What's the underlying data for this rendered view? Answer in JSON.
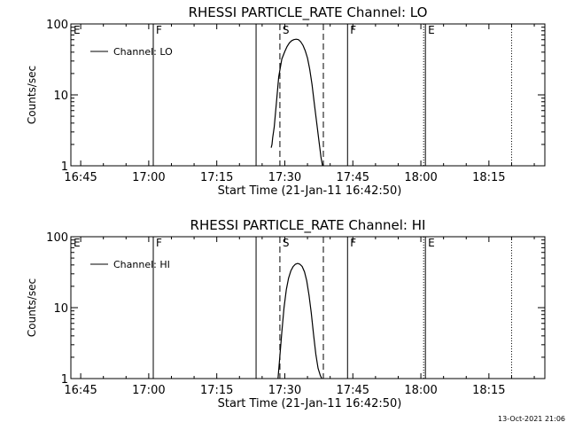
{
  "footer_timestamp": "13-Oct-2021 21:06",
  "chart_data": [
    {
      "type": "line",
      "title": "RHESSI PARTICLE_RATE Channel: LO",
      "xlabel": "Start Time (21-Jan-11 16:42:50)",
      "ylabel": "Counts/sec",
      "y_scale": "log",
      "ylim": [
        1,
        100
      ],
      "xlim": [
        "16:42:50",
        "18:27:20"
      ],
      "x_ticks": [
        "16:45",
        "17:00",
        "17:15",
        "17:30",
        "17:45",
        "18:00",
        "18:15"
      ],
      "y_ticks": [
        "1",
        "10",
        "100"
      ],
      "legend": {
        "placement": "top-left",
        "entries": [
          "Channel: LO"
        ]
      },
      "series": [
        {
          "name": "Channel: LO",
          "x": [
            "17:27:00",
            "17:27:10",
            "17:27:20",
            "17:27:40",
            "17:28:10",
            "17:28:40",
            "17:29:20",
            "17:30:00",
            "17:30:30",
            "17:31:00",
            "17:31:30",
            "17:32:00",
            "17:32:30",
            "17:33:00",
            "17:33:30",
            "17:34:00",
            "17:34:30",
            "17:35:00",
            "17:35:30",
            "17:36:00",
            "17:36:30",
            "17:37:00",
            "17:37:30",
            "17:38:00",
            "17:38:20"
          ],
          "values": [
            1.8,
            2.0,
            2.5,
            3.5,
            8,
            18,
            32,
            41,
            48,
            54,
            58,
            60,
            61,
            60,
            56,
            50,
            42,
            33,
            23,
            14,
            7.5,
            4.2,
            2.3,
            1.3,
            1.0
          ]
        }
      ],
      "flags": [
        {
          "label": "E",
          "time": "16:42:50",
          "style": "none"
        },
        {
          "label": "F",
          "time": "17:01:00",
          "style": "solid"
        },
        {
          "label": "",
          "time": "17:23:40",
          "style": "solid"
        },
        {
          "label": "S",
          "time": "17:28:55",
          "style": "dashed"
        },
        {
          "label": "",
          "time": "17:38:30",
          "style": "dashed"
        },
        {
          "label": "F",
          "time": "17:43:50",
          "style": "solid"
        },
        {
          "label": "E",
          "time": "18:01:00",
          "style": "dotted-solid"
        },
        {
          "label": "",
          "time": "18:20:00",
          "style": "dotted"
        }
      ]
    },
    {
      "type": "line",
      "title": "RHESSI PARTICLE_RATE Channel: HI",
      "xlabel": "Start Time (21-Jan-11 16:42:50)",
      "ylabel": "Counts/sec",
      "y_scale": "log",
      "ylim": [
        1,
        100
      ],
      "xlim": [
        "16:42:50",
        "18:27:20"
      ],
      "x_ticks": [
        "16:45",
        "17:00",
        "17:15",
        "17:30",
        "17:45",
        "18:00",
        "18:15"
      ],
      "y_ticks": [
        "1",
        "10",
        "100"
      ],
      "legend": {
        "placement": "top-left",
        "entries": [
          "Channel: HI"
        ]
      },
      "series": [
        {
          "name": "Channel: HI",
          "x": [
            "17:28:30",
            "17:28:50",
            "17:29:20",
            "17:29:50",
            "17:30:20",
            "17:30:50",
            "17:31:20",
            "17:31:50",
            "17:32:20",
            "17:32:50",
            "17:33:20",
            "17:33:50",
            "17:34:20",
            "17:34:50",
            "17:35:20",
            "17:35:50",
            "17:36:20",
            "17:36:50",
            "17:37:20",
            "17:37:50",
            "17:38:10"
          ],
          "values": [
            1.0,
            1.8,
            4.5,
            10,
            18,
            26,
            33,
            38,
            41,
            42,
            41,
            38,
            32,
            24,
            15,
            8.5,
            4.2,
            2.2,
            1.4,
            1.1,
            1.0
          ]
        }
      ],
      "flags": [
        {
          "label": "E",
          "time": "16:42:50",
          "style": "none"
        },
        {
          "label": "F",
          "time": "17:01:00",
          "style": "solid"
        },
        {
          "label": "",
          "time": "17:23:40",
          "style": "solid"
        },
        {
          "label": "S",
          "time": "17:28:55",
          "style": "dashed"
        },
        {
          "label": "",
          "time": "17:38:30",
          "style": "dashed"
        },
        {
          "label": "F",
          "time": "17:43:50",
          "style": "solid"
        },
        {
          "label": "E",
          "time": "18:01:00",
          "style": "dotted-solid"
        },
        {
          "label": "",
          "time": "18:20:00",
          "style": "dotted"
        }
      ]
    }
  ]
}
